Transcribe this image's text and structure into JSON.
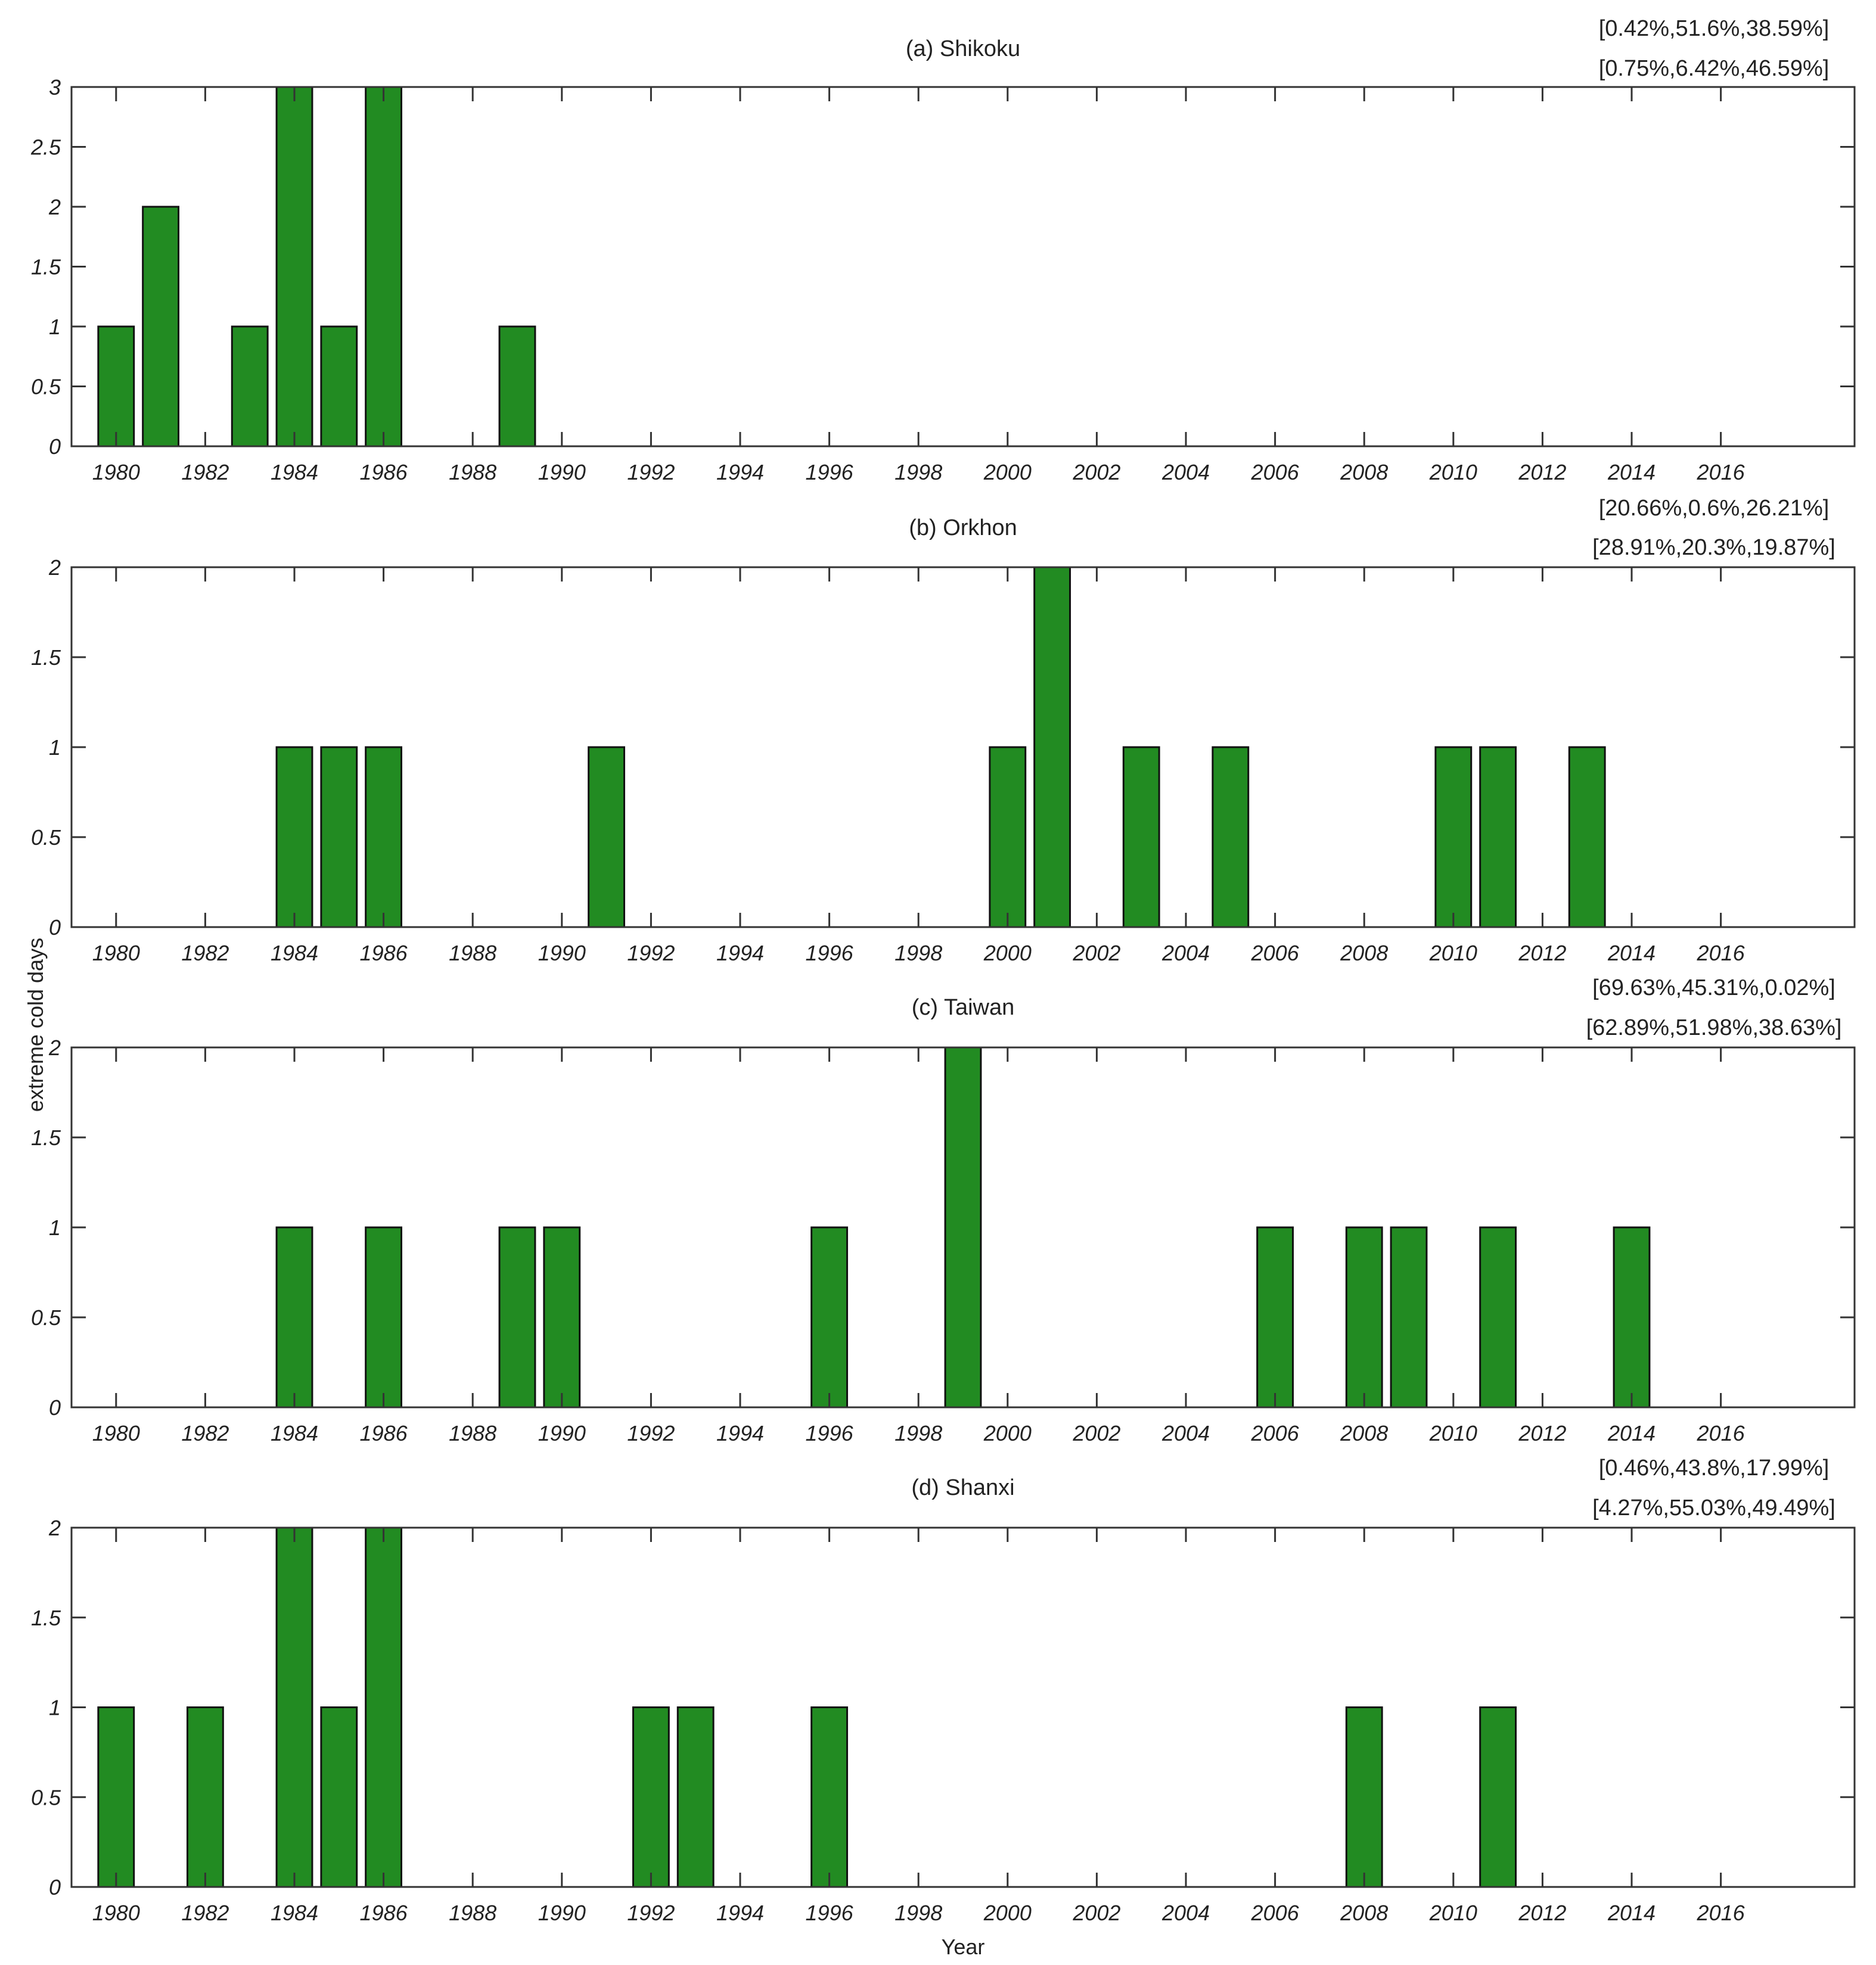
{
  "figure": {
    "ylabel": "extreme cold days",
    "xlabel": "Year"
  },
  "chart_data": [
    {
      "type": "bar",
      "title": "(a) Shikoku",
      "annotations": [
        "[0.42%,51.6%,38.59%]",
        "[0.75%,6.42%,46.59%]"
      ],
      "years": [
        1980,
        1981,
        1982,
        1983,
        1984,
        1985,
        1986,
        1987,
        1988,
        1989,
        1990,
        1991,
        1992,
        1993,
        1994,
        1995,
        1996,
        1997,
        1998,
        1999,
        2000,
        2001,
        2002,
        2003,
        2004,
        2005,
        2006,
        2007,
        2008,
        2009,
        2010,
        2011,
        2012,
        2013,
        2014,
        2015,
        2016,
        2017,
        2018
      ],
      "values": [
        1,
        2,
        0,
        1,
        3,
        1,
        3,
        0,
        0,
        1,
        0,
        0,
        0,
        0,
        0,
        0,
        0,
        0,
        0,
        0,
        0,
        0,
        0,
        0,
        0,
        0,
        0,
        0,
        0,
        0,
        0,
        0,
        0,
        0,
        0,
        0,
        0,
        0,
        0
      ],
      "xticks": [
        1980,
        1982,
        1984,
        1986,
        1988,
        1990,
        1992,
        1994,
        1996,
        1998,
        2000,
        2002,
        2004,
        2006,
        2008,
        2010,
        2012,
        2014,
        2016
      ],
      "yticks": [
        "0",
        "0.5",
        "1",
        "1.5",
        "2",
        "2.5",
        "3"
      ],
      "ylim": [
        0,
        3
      ],
      "xlim": [
        1979,
        2019
      ],
      "bar_color": "#228B22"
    },
    {
      "type": "bar",
      "title": "(b) Orkhon",
      "annotations": [
        "[20.66%,0.6%,26.21%]",
        "[28.91%,20.3%,19.87%]"
      ],
      "years": [
        1980,
        1981,
        1982,
        1983,
        1984,
        1985,
        1986,
        1987,
        1988,
        1989,
        1990,
        1991,
        1992,
        1993,
        1994,
        1995,
        1996,
        1997,
        1998,
        1999,
        2000,
        2001,
        2002,
        2003,
        2004,
        2005,
        2006,
        2007,
        2008,
        2009,
        2010,
        2011,
        2012,
        2013,
        2014,
        2015,
        2016,
        2017,
        2018
      ],
      "values": [
        0,
        0,
        0,
        0,
        1,
        1,
        1,
        0,
        0,
        0,
        0,
        1,
        0,
        0,
        0,
        0,
        0,
        0,
        0,
        0,
        1,
        2,
        0,
        1,
        0,
        1,
        0,
        0,
        0,
        0,
        1,
        1,
        0,
        1,
        0,
        0,
        0,
        0,
        0
      ],
      "xticks": [
        1980,
        1982,
        1984,
        1986,
        1988,
        1990,
        1992,
        1994,
        1996,
        1998,
        2000,
        2002,
        2004,
        2006,
        2008,
        2010,
        2012,
        2014,
        2016
      ],
      "yticks": [
        "0",
        "0.5",
        "1",
        "1.5",
        "2"
      ],
      "ylim": [
        0,
        2
      ],
      "xlim": [
        1979,
        2019
      ],
      "bar_color": "#228B22"
    },
    {
      "type": "bar",
      "title": "(c) Taiwan",
      "annotations": [
        "[69.63%,45.31%,0.02%]",
        "[62.89%,51.98%,38.63%]"
      ],
      "years": [
        1980,
        1981,
        1982,
        1983,
        1984,
        1985,
        1986,
        1987,
        1988,
        1989,
        1990,
        1991,
        1992,
        1993,
        1994,
        1995,
        1996,
        1997,
        1998,
        1999,
        2000,
        2001,
        2002,
        2003,
        2004,
        2005,
        2006,
        2007,
        2008,
        2009,
        2010,
        2011,
        2012,
        2013,
        2014,
        2015,
        2016,
        2017,
        2018
      ],
      "values": [
        0,
        0,
        0,
        0,
        1,
        0,
        1,
        0,
        0,
        1,
        1,
        0,
        0,
        0,
        0,
        0,
        1,
        0,
        0,
        2,
        0,
        0,
        0,
        0,
        0,
        0,
        1,
        0,
        1,
        1,
        0,
        1,
        0,
        0,
        1,
        0,
        0,
        0,
        0
      ],
      "xticks": [
        1980,
        1982,
        1984,
        1986,
        1988,
        1990,
        1992,
        1994,
        1996,
        1998,
        2000,
        2002,
        2004,
        2006,
        2008,
        2010,
        2012,
        2014,
        2016
      ],
      "yticks": [
        "0",
        "0.5",
        "1",
        "1.5",
        "2"
      ],
      "ylim": [
        0,
        2
      ],
      "xlim": [
        1979,
        2019
      ],
      "bar_color": "#228B22"
    },
    {
      "type": "bar",
      "title": "(d) Shanxi",
      "annotations": [
        "[0.46%,43.8%,17.99%]",
        "[4.27%,55.03%,49.49%]"
      ],
      "years": [
        1980,
        1981,
        1982,
        1983,
        1984,
        1985,
        1986,
        1987,
        1988,
        1989,
        1990,
        1991,
        1992,
        1993,
        1994,
        1995,
        1996,
        1997,
        1998,
        1999,
        2000,
        2001,
        2002,
        2003,
        2004,
        2005,
        2006,
        2007,
        2008,
        2009,
        2010,
        2011,
        2012,
        2013,
        2014,
        2015,
        2016,
        2017,
        2018
      ],
      "values": [
        1,
        0,
        1,
        0,
        2,
        1,
        2,
        0,
        0,
        0,
        0,
        0,
        1,
        1,
        0,
        0,
        1,
        0,
        0,
        0,
        0,
        0,
        0,
        0,
        0,
        0,
        0,
        0,
        1,
        0,
        0,
        1,
        0,
        0,
        0,
        0,
        0,
        0,
        0
      ],
      "xticks": [
        1980,
        1982,
        1984,
        1986,
        1988,
        1990,
        1992,
        1994,
        1996,
        1998,
        2000,
        2002,
        2004,
        2006,
        2008,
        2010,
        2012,
        2014,
        2016
      ],
      "yticks": [
        "0",
        "0.5",
        "1",
        "1.5",
        "2"
      ],
      "ylim": [
        0,
        2
      ],
      "xlim": [
        1979,
        2019
      ],
      "bar_color": "#228B22"
    }
  ]
}
